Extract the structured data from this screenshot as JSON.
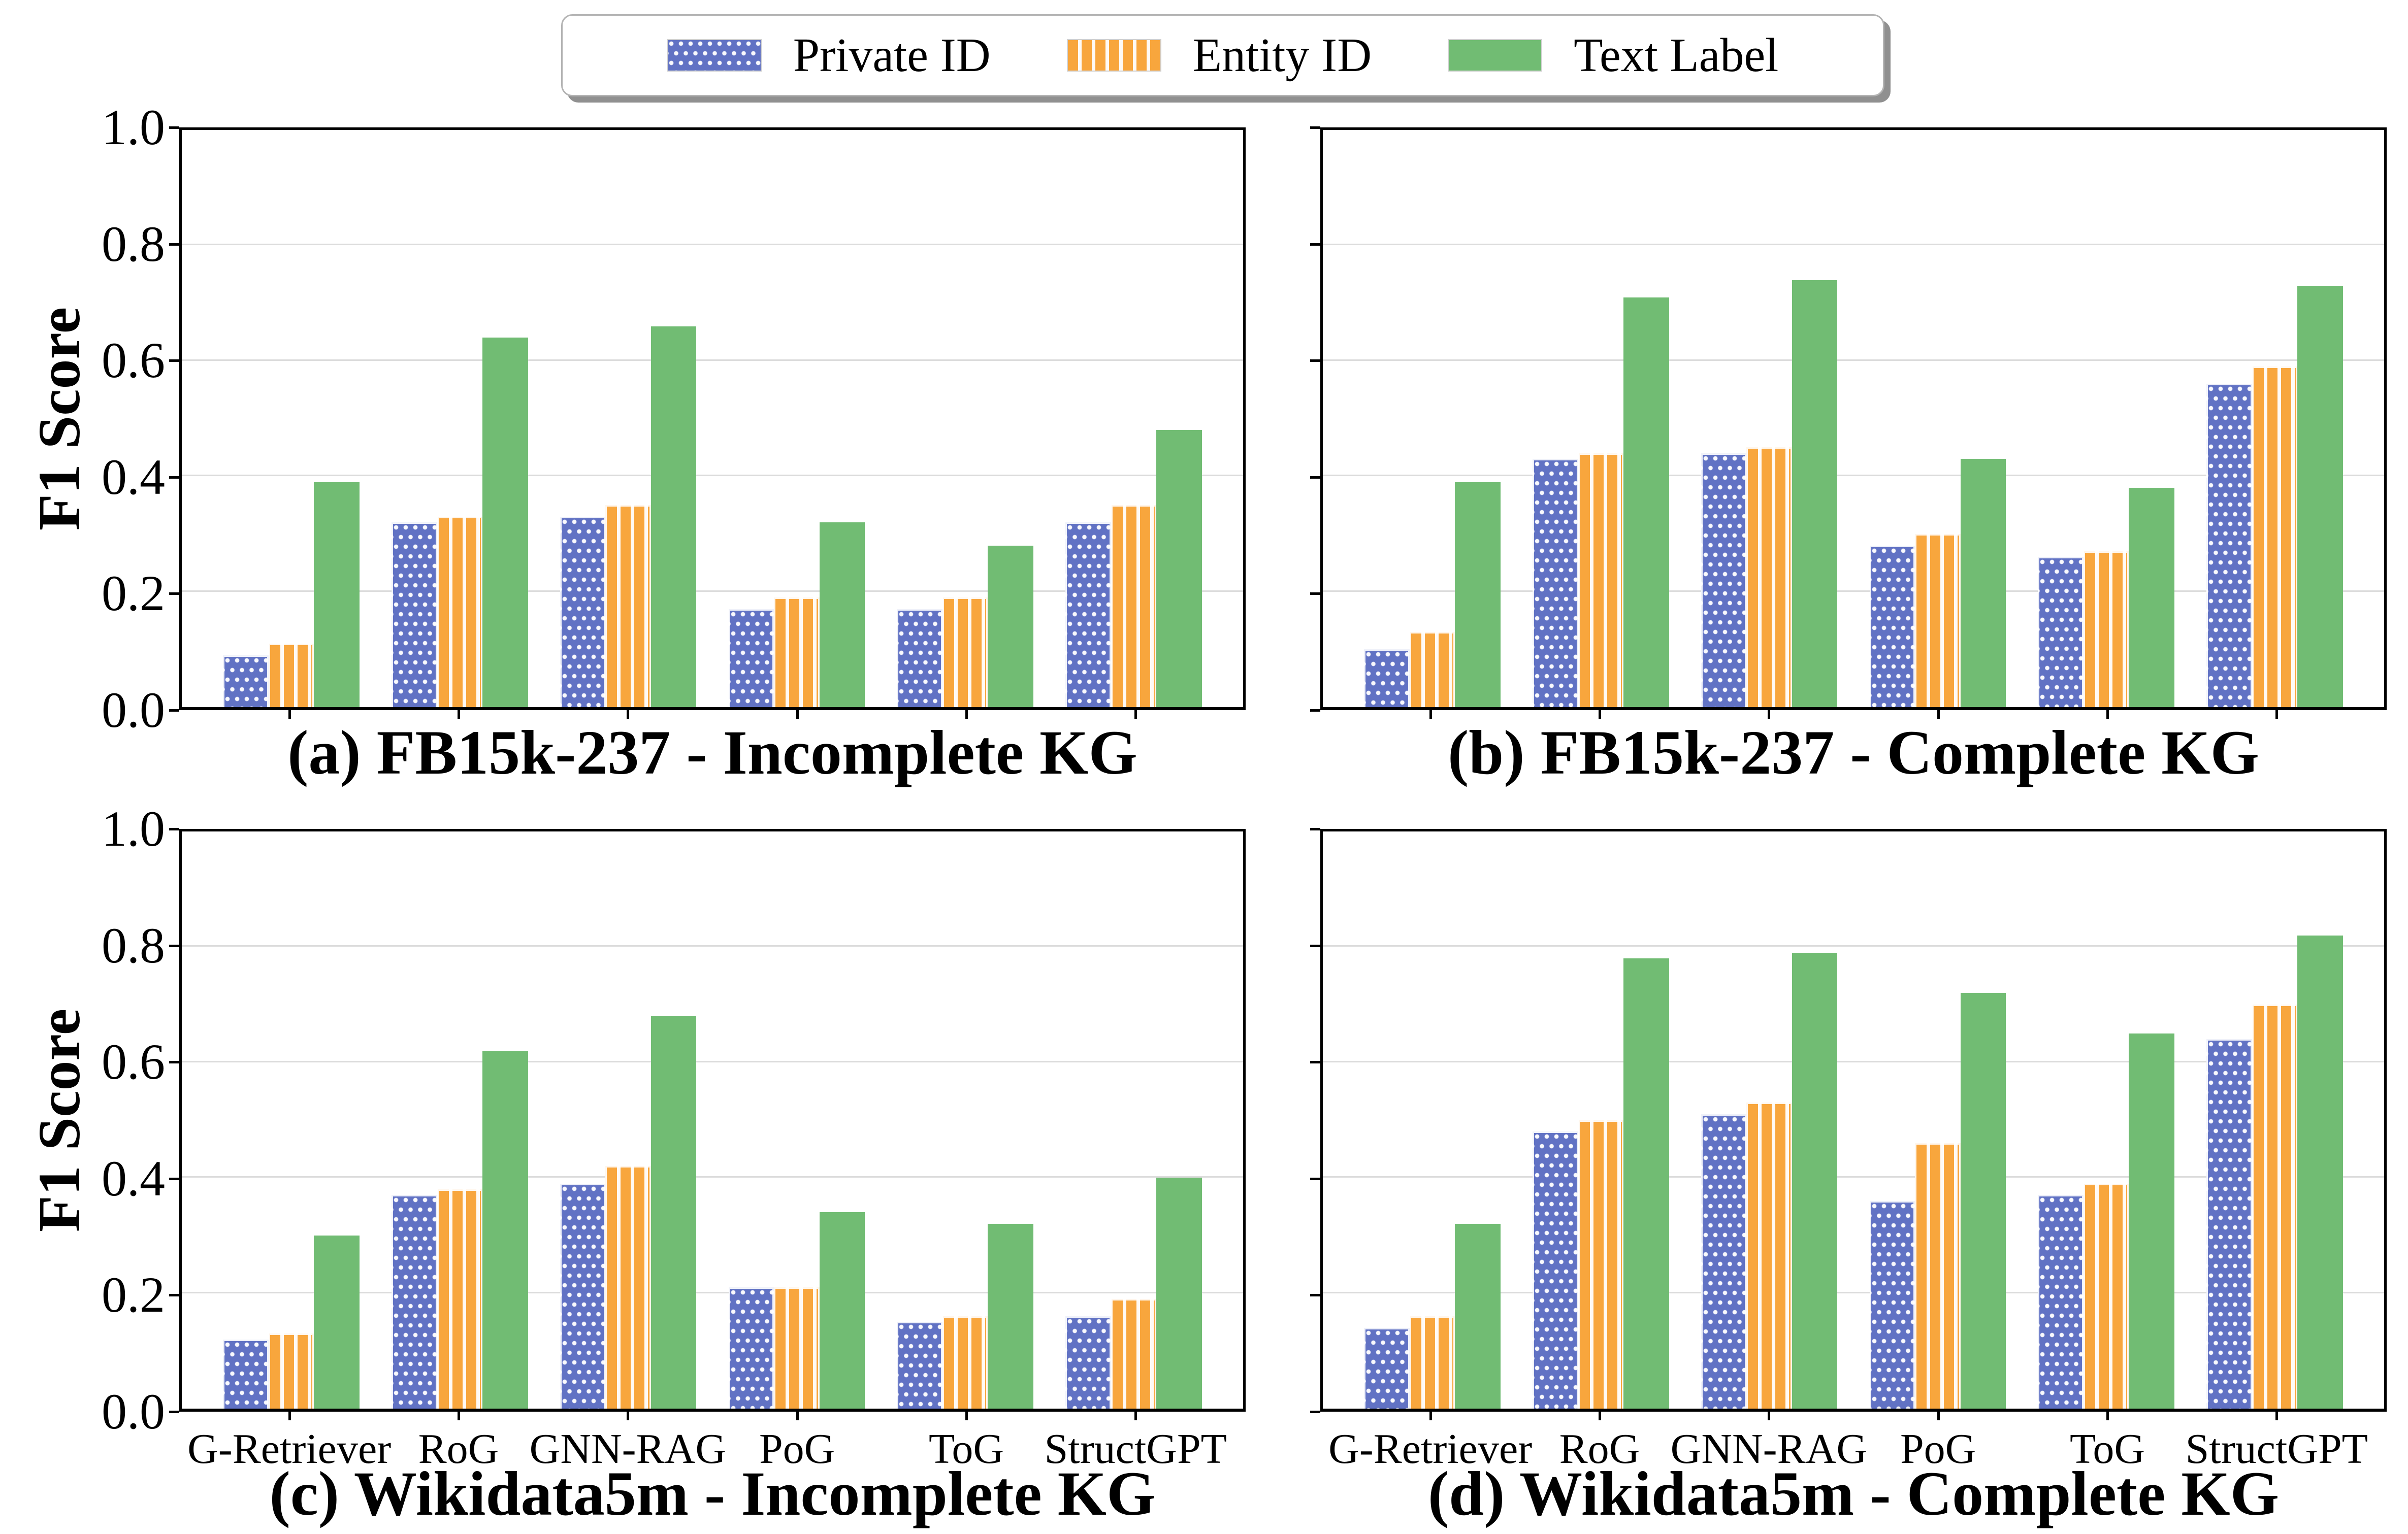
{
  "legend": {
    "items": [
      {
        "label": "Private ID",
        "pattern": "polka-dots",
        "color": "#6172C4"
      },
      {
        "label": "Entity ID",
        "pattern": "vertical-stripes",
        "color": "#F8A63D"
      },
      {
        "label": "Text Label",
        "pattern": "solid",
        "color": "#71BC73"
      }
    ]
  },
  "y_axis": {
    "label": "F1 Score",
    "ticks": [
      "0.0",
      "0.2",
      "0.4",
      "0.6",
      "0.8",
      "1.0"
    ]
  },
  "categories": [
    "G-Retriever",
    "RoG",
    "GNN-RAG",
    "PoG",
    "ToG",
    "StructGPT"
  ],
  "colors": {
    "gridline": "#dcdcdc",
    "spine": "#000000",
    "legend_border": "#b3b3b3",
    "legend_shadow": "#909090"
  },
  "chart_data": [
    {
      "id": "a",
      "type": "bar",
      "title": "(a) FB15k-237 - Incomplete KG",
      "ylabel": "F1 Score",
      "ylim": [
        0,
        1
      ],
      "grid": true,
      "legend_position": "top-center",
      "categories": [
        "G-Retriever",
        "RoG",
        "GNN-RAG",
        "PoG",
        "ToG",
        "StructGPT"
      ],
      "series": [
        {
          "name": "Private ID",
          "values": [
            0.09,
            0.32,
            0.33,
            0.17,
            0.17,
            0.32
          ]
        },
        {
          "name": "Entity ID",
          "values": [
            0.11,
            0.33,
            0.35,
            0.19,
            0.19,
            0.35
          ]
        },
        {
          "name": "Text Label",
          "values": [
            0.39,
            0.64,
            0.66,
            0.32,
            0.28,
            0.48
          ]
        }
      ]
    },
    {
      "id": "b",
      "type": "bar",
      "title": "(b) FB15k-237 - Complete KG",
      "ylabel": "F1 Score",
      "ylim": [
        0,
        1
      ],
      "grid": true,
      "legend_position": "top-center",
      "categories": [
        "G-Retriever",
        "RoG",
        "GNN-RAG",
        "PoG",
        "ToG",
        "StructGPT"
      ],
      "series": [
        {
          "name": "Private ID",
          "values": [
            0.1,
            0.43,
            0.44,
            0.28,
            0.26,
            0.56
          ]
        },
        {
          "name": "Entity ID",
          "values": [
            0.13,
            0.44,
            0.45,
            0.3,
            0.27,
            0.59
          ]
        },
        {
          "name": "Text Label",
          "values": [
            0.39,
            0.71,
            0.74,
            0.43,
            0.38,
            0.73
          ]
        }
      ]
    },
    {
      "id": "c",
      "type": "bar",
      "title": "(c) Wikidata5m - Incomplete KG",
      "ylabel": "F1 Score",
      "ylim": [
        0,
        1
      ],
      "grid": true,
      "legend_position": "top-center",
      "categories": [
        "G-Retriever",
        "RoG",
        "GNN-RAG",
        "PoG",
        "ToG",
        "StructGPT"
      ],
      "series": [
        {
          "name": "Private ID",
          "values": [
            0.12,
            0.37,
            0.39,
            0.21,
            0.15,
            0.16
          ]
        },
        {
          "name": "Entity ID",
          "values": [
            0.13,
            0.38,
            0.42,
            0.21,
            0.16,
            0.19
          ]
        },
        {
          "name": "Text Label",
          "values": [
            0.3,
            0.62,
            0.68,
            0.34,
            0.32,
            0.4
          ]
        }
      ]
    },
    {
      "id": "d",
      "type": "bar",
      "title": "(d) Wikidata5m - Complete KG",
      "ylabel": "F1 Score",
      "ylim": [
        0,
        1
      ],
      "grid": true,
      "legend_position": "top-center",
      "categories": [
        "G-Retriever",
        "RoG",
        "GNN-RAG",
        "PoG",
        "ToG",
        "StructGPT"
      ],
      "series": [
        {
          "name": "Private ID",
          "values": [
            0.14,
            0.48,
            0.51,
            0.36,
            0.37,
            0.64
          ]
        },
        {
          "name": "Entity ID",
          "values": [
            0.16,
            0.5,
            0.53,
            0.46,
            0.39,
            0.7
          ]
        },
        {
          "name": "Text Label",
          "values": [
            0.32,
            0.78,
            0.79,
            0.72,
            0.65,
            0.82
          ]
        }
      ]
    }
  ]
}
